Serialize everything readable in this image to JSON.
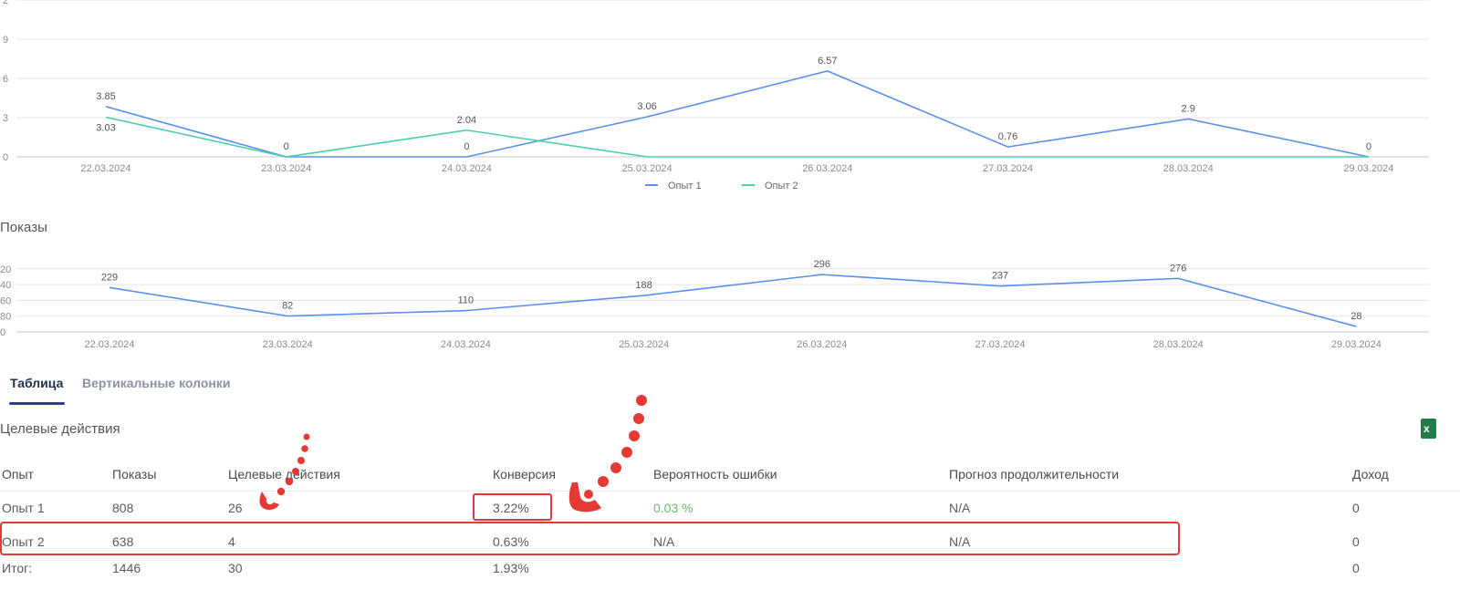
{
  "tabs": [
    {
      "label": "Таблица",
      "active": true
    },
    {
      "label": "Вертикальные колонки",
      "active": false
    }
  ],
  "sections": {
    "shows_title": "Показы",
    "actions_title": "Целевые действия"
  },
  "table": {
    "headers": [
      "Опыт",
      "Показы",
      "Целевые действия",
      "Конверсия",
      "Вероятность ошибки",
      "Прогноз продолжительности",
      "Доход"
    ],
    "rows": [
      [
        "Опыт 1",
        "808",
        "26",
        "3.22%",
        "0.03 %",
        "N/A",
        "0"
      ],
      [
        "Опыт 2",
        "638",
        "4",
        "0.63%",
        "N/A",
        "N/A",
        "0"
      ],
      [
        "Итог:",
        "1446",
        "30",
        "1.93%",
        "",
        "",
        "0"
      ]
    ]
  },
  "colors": {
    "series1": "#5b8ff0",
    "series2": "#48d1a8",
    "annotation": "#e53935",
    "good": "#6ab96a",
    "excel": "#1e7e45"
  },
  "icons": {
    "export": "excel-icon"
  },
  "chart_data": [
    {
      "type": "line",
      "title": "",
      "x": [
        "22.03.2024",
        "23.03.2024",
        "24.03.2024",
        "25.03.2024",
        "26.03.2024",
        "27.03.2024",
        "28.03.2024",
        "29.03.2024"
      ],
      "y_ticks": [
        "0",
        "3",
        "6",
        "9"
      ],
      "ylim": [
        0,
        12
      ],
      "series": [
        {
          "name": "Опыт 1",
          "values": [
            3.85,
            0,
            0,
            3.06,
            6.57,
            0.76,
            2.9,
            0
          ],
          "labels": [
            "3.85",
            "0",
            "0",
            "3.06",
            "6.57",
            "0.76",
            "2.9",
            "0"
          ]
        },
        {
          "name": "Опыт 2",
          "values": [
            3.03,
            0,
            2.04,
            0,
            0,
            0,
            0,
            0
          ],
          "labels": [
            "3.03",
            "",
            "2.04",
            "",
            "",
            "",
            "",
            ""
          ]
        }
      ],
      "legend": "bottom-center",
      "grid": true
    },
    {
      "type": "line",
      "title": "Показы",
      "x": [
        "22.03.2024",
        "23.03.2024",
        "24.03.2024",
        "25.03.2024",
        "26.03.2024",
        "27.03.2024",
        "28.03.2024",
        "29.03.2024"
      ],
      "y_ticks": [
        "0",
        "80",
        "60",
        "40",
        "20"
      ],
      "ylim": [
        0,
        320
      ],
      "series": [
        {
          "values": [
            229,
            82,
            110,
            188,
            296,
            237,
            276,
            28
          ],
          "labels": [
            "229",
            "82",
            "110",
            "188",
            "296",
            "237",
            "276",
            "28"
          ]
        }
      ],
      "grid": true
    }
  ]
}
